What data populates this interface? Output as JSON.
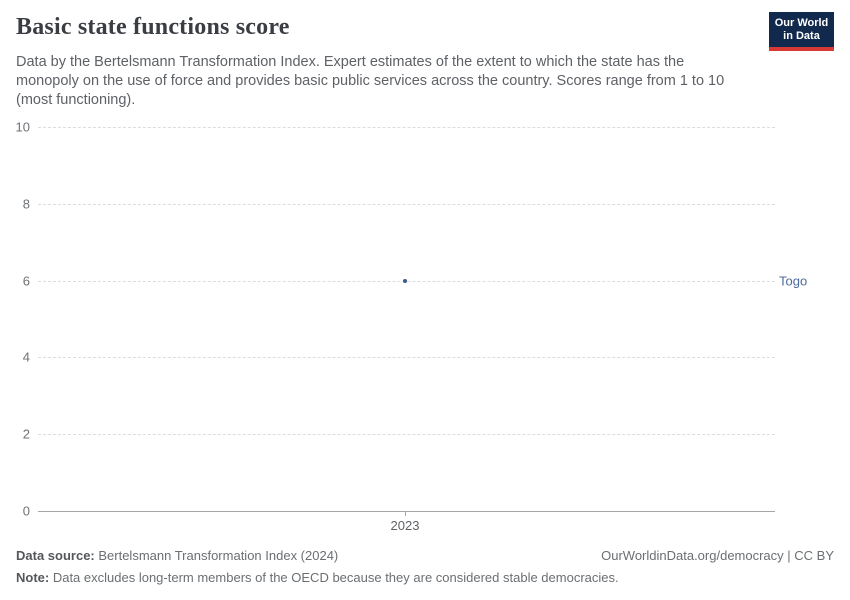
{
  "header": {
    "title": "Basic state functions score",
    "subtitle_lines": [
      "Data by the Bertelsmann Transformation Index. Expert estimates of the extent to which the state has the",
      "monopoly on the use of force and provides basic public services across the country. Scores range from 1 to 10",
      "(most functioning)."
    ],
    "logo": {
      "line1": "Our World",
      "line2": "in Data"
    }
  },
  "chart": {
    "y_ticks": [
      "10",
      "8",
      "6",
      "4",
      "2",
      "0"
    ],
    "x_tick": "2023",
    "entity_label": "Togo",
    "point_color": "#3d5a8f",
    "entity_label_color": "#4c6a9c",
    "gridline_color": "#dadde0",
    "axis_color": "#a3a7aa"
  },
  "chart_data": {
    "type": "scatter",
    "title": "Basic state functions score",
    "x": [
      2023
    ],
    "series": [
      {
        "name": "Togo",
        "values": [
          6
        ]
      }
    ],
    "xlabel": "",
    "ylabel": "",
    "ylim": [
      0,
      10
    ],
    "yticks": [
      0,
      2,
      4,
      6,
      8,
      10
    ],
    "xticks": [
      2023
    ],
    "grid": "horizontal-dashed",
    "legend_position": "right-of-point"
  },
  "footer": {
    "source_label": "Data source:",
    "source_value": " Bertelsmann Transformation Index (2024)",
    "link": "OurWorldinData.org/democracy | CC BY",
    "note_label": "Note:",
    "note_value": " Data excludes long-term members of the OECD because they are considered stable democracies."
  }
}
